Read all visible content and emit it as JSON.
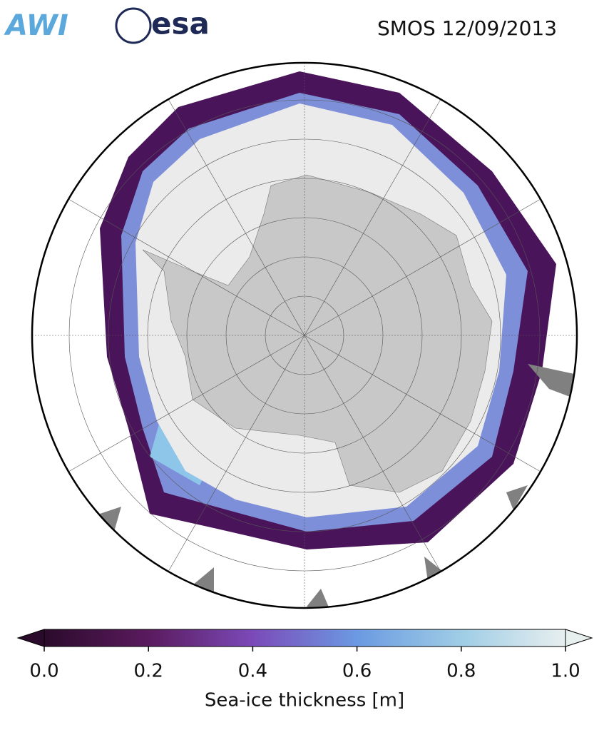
{
  "header": {
    "logos": [
      "AWI",
      "esa"
    ],
    "title": "SMOS 12/09/2013"
  },
  "colorbar": {
    "label": "Sea-ice thickness [m]",
    "range": [
      0,
      1
    ],
    "ticks": [
      {
        "value": 0,
        "label": "0.0"
      },
      {
        "value": 0.2,
        "label": "0.2"
      },
      {
        "value": 0.4,
        "label": "0.4"
      },
      {
        "value": 0.6,
        "label": "0.6"
      },
      {
        "value": 0.8,
        "label": "0.8"
      },
      {
        "value": 1,
        "label": "1.0"
      }
    ],
    "colors": [
      "#2b0b2c",
      "#5a1a5e",
      "#7b4ab8",
      "#6b9ae2",
      "#9fcde6",
      "#e8efef"
    ]
  }
}
